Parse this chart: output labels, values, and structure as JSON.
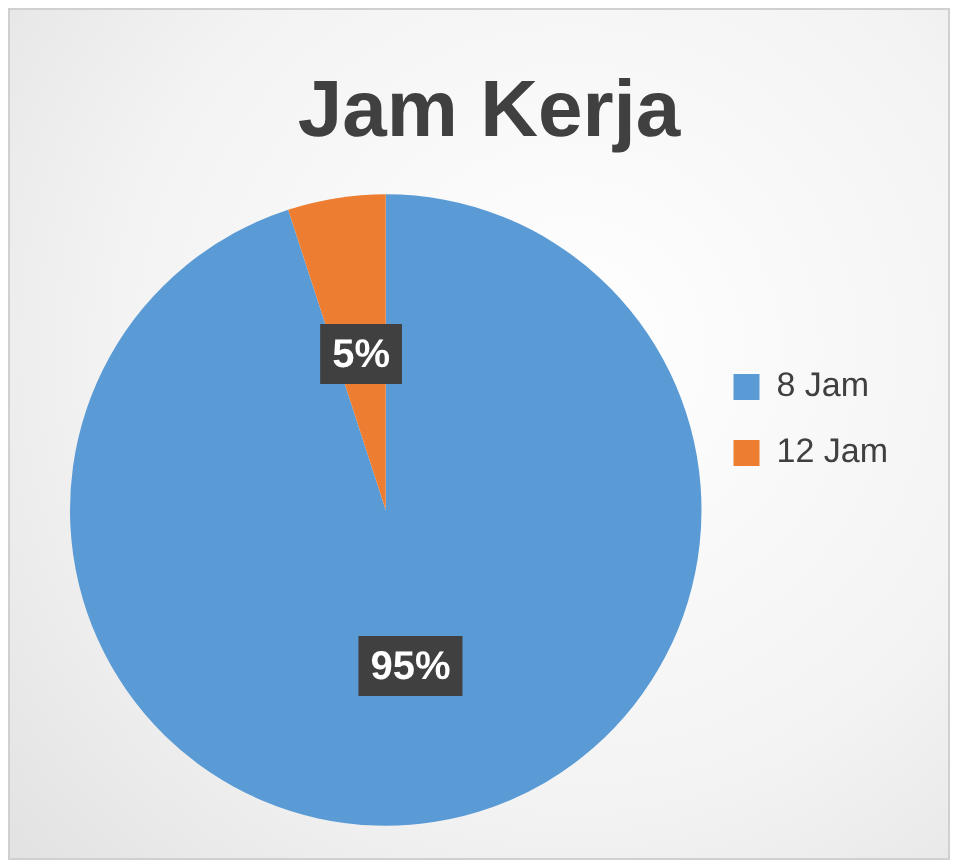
{
  "chart_data": {
    "type": "pie",
    "title": "Jam Kerja",
    "categories": [
      "8 Jam",
      "12 Jam"
    ],
    "values": [
      95,
      5
    ],
    "colors": [
      "#5b9bd5",
      "#ed7d31"
    ],
    "value_labels": [
      "95%",
      "5%"
    ],
    "legend": "right"
  }
}
